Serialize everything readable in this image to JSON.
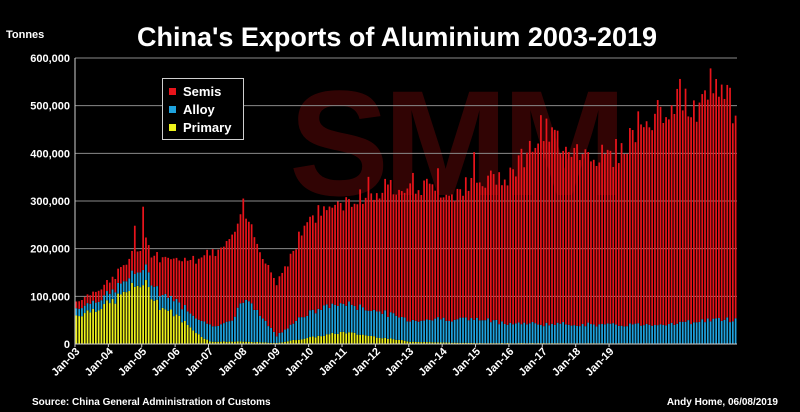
{
  "chart_data": {
    "type": "bar",
    "stacked": true,
    "title": "China's Exports of Aluminium 2003-2019",
    "ylabel": "Tonnes",
    "ylim": [
      0,
      600000
    ],
    "yticks": [
      "0",
      "100,000",
      "200,000",
      "300,000",
      "400,000",
      "500,000",
      "600,000"
    ],
    "ytick_values": [
      0,
      100000,
      200000,
      300000,
      400000,
      500000,
      600000
    ],
    "xtick_labels": [
      "Jan-03",
      "Jan-04",
      "Jan-05",
      "Jan-06",
      "Jan-07",
      "Jan-08",
      "Jan-09",
      "Jan-10",
      "Jan-11",
      "Jan-12",
      "Jan-13",
      "Jan-14",
      "Jan-15",
      "Jan-16",
      "Jan-17",
      "Jan-18",
      "Jan-19"
    ],
    "months_per_tick": 12,
    "grid": true,
    "legend": "top-left",
    "colors": {
      "Semis": "#e8141b",
      "Alloy": "#1fa3de",
      "Primary": "#eef21c"
    },
    "series": [
      {
        "name": "Semis",
        "anchors": [
          [
            0,
            15000
          ],
          [
            12,
            25000
          ],
          [
            24,
            50000
          ],
          [
            36,
            90000
          ],
          [
            48,
            150000
          ],
          [
            60,
            180000
          ],
          [
            66,
            140000
          ],
          [
            72,
            110000
          ],
          [
            84,
            200000
          ],
          [
            96,
            210000
          ],
          [
            108,
            250000
          ],
          [
            120,
            290000
          ],
          [
            132,
            265000
          ],
          [
            144,
            280000
          ],
          [
            156,
            320000
          ],
          [
            168,
            400000
          ],
          [
            180,
            370000
          ],
          [
            192,
            350000
          ],
          [
            204,
            420000
          ],
          [
            216,
            470000
          ],
          [
            222,
            440000
          ],
          [
            228,
            470000
          ],
          [
            234,
            470000
          ],
          [
            237,
            460000
          ]
        ]
      },
      {
        "name": "Alloy",
        "anchors": [
          [
            0,
            15000
          ],
          [
            12,
            20000
          ],
          [
            24,
            30000
          ],
          [
            36,
            30000
          ],
          [
            48,
            35000
          ],
          [
            56,
            40000
          ],
          [
            60,
            90000
          ],
          [
            66,
            60000
          ],
          [
            72,
            15000
          ],
          [
            80,
            45000
          ],
          [
            90,
            60000
          ],
          [
            96,
            60000
          ],
          [
            108,
            55000
          ],
          [
            120,
            45000
          ],
          [
            132,
            50000
          ],
          [
            144,
            50000
          ],
          [
            156,
            42000
          ],
          [
            168,
            40000
          ],
          [
            180,
            40000
          ],
          [
            192,
            38000
          ],
          [
            204,
            40000
          ],
          [
            216,
            42000
          ],
          [
            228,
            50000
          ],
          [
            237,
            50000
          ]
        ]
      },
      {
        "name": "Primary",
        "anchors": [
          [
            0,
            60000
          ],
          [
            12,
            85000
          ],
          [
            18,
            110000
          ],
          [
            24,
            130000
          ],
          [
            30,
            80000
          ],
          [
            36,
            60000
          ],
          [
            44,
            20000
          ],
          [
            48,
            5000
          ],
          [
            60,
            5000
          ],
          [
            72,
            2000
          ],
          [
            96,
            25000
          ],
          [
            108,
            15000
          ],
          [
            120,
            5000
          ],
          [
            132,
            3000
          ],
          [
            144,
            2000
          ],
          [
            237,
            1000
          ]
        ]
      }
    ],
    "spikes": [
      [
        21,
        55000
      ],
      [
        24,
        80000
      ],
      [
        60,
        25000
      ],
      [
        105,
        40000
      ],
      [
        130,
        60000
      ],
      [
        143,
        60000
      ],
      [
        167,
        20000
      ],
      [
        202,
        25000
      ],
      [
        212,
        -40000
      ],
      [
        217,
        30000
      ],
      [
        228,
        35000
      ],
      [
        232,
        30000
      ],
      [
        236,
        -20000
      ]
    ]
  },
  "footer": {
    "source": "Source: China General Administration of Customs",
    "credit": "Andy Home, 06/08/2019"
  }
}
